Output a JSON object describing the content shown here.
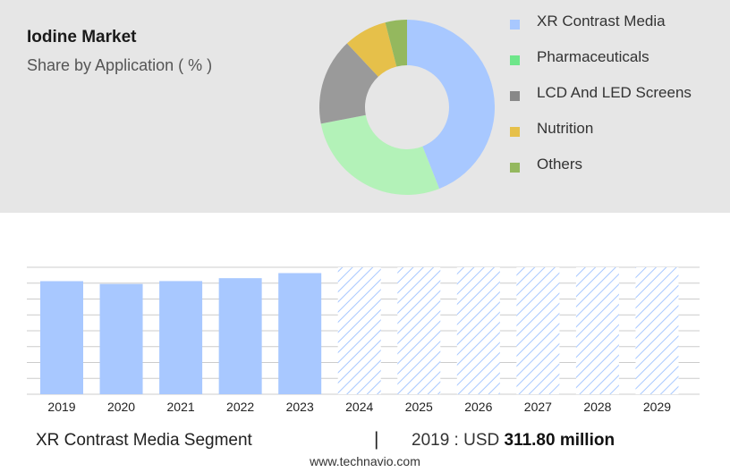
{
  "header": {
    "title": "Iodine Market",
    "subtitle": "Share by Application ( % )"
  },
  "colors": {
    "panel_bg": "#e6e6e6",
    "bar": "#a8c8ff",
    "forecast_hatch": "#a8c8ff",
    "grid": "#cccccc"
  },
  "chart_data": [
    {
      "type": "pie",
      "variant": "donut",
      "legend_position": "right",
      "slices": [
        {
          "label": "XR Contrast Media",
          "value": 44,
          "color": "#a8c8ff"
        },
        {
          "label": "Pharmaceuticals",
          "value": 28,
          "color": "#b3f2b8"
        },
        {
          "label": "LCD And LED Screens",
          "value": 16,
          "color": "#9a9a9a"
        },
        {
          "label": "Nutrition",
          "value": 8,
          "color": "#e6c04a"
        },
        {
          "label": "Others",
          "value": 4,
          "color": "#94b85e"
        }
      ],
      "legend": [
        {
          "label": "XR Contrast Media",
          "color": "#a8c8ff"
        },
        {
          "label": "Pharmaceuticals",
          "color": "#6ee68a"
        },
        {
          "label": "LCD And LED Screens",
          "color": "#888888"
        },
        {
          "label": "Nutrition",
          "color": "#e6c04a"
        },
        {
          "label": "Others",
          "color": "#94b85e"
        }
      ]
    },
    {
      "type": "bar",
      "categories": [
        "2019",
        "2020",
        "2021",
        "2022",
        "2023",
        "2024",
        "2025",
        "2026",
        "2027",
        "2028",
        "2029"
      ],
      "values": [
        311.8,
        304,
        312,
        320,
        334,
        350,
        350,
        350,
        350,
        350,
        350
      ],
      "forecast_from": "2024",
      "ylim": [
        0,
        350
      ],
      "grid": true,
      "y_ticks_shown": false
    }
  ],
  "footer": {
    "segment": "XR Contrast Media Segment",
    "divider": "|",
    "value_prefix": "2019 : USD ",
    "value_bold": "311.80 million",
    "source": "www.technavio.com"
  }
}
